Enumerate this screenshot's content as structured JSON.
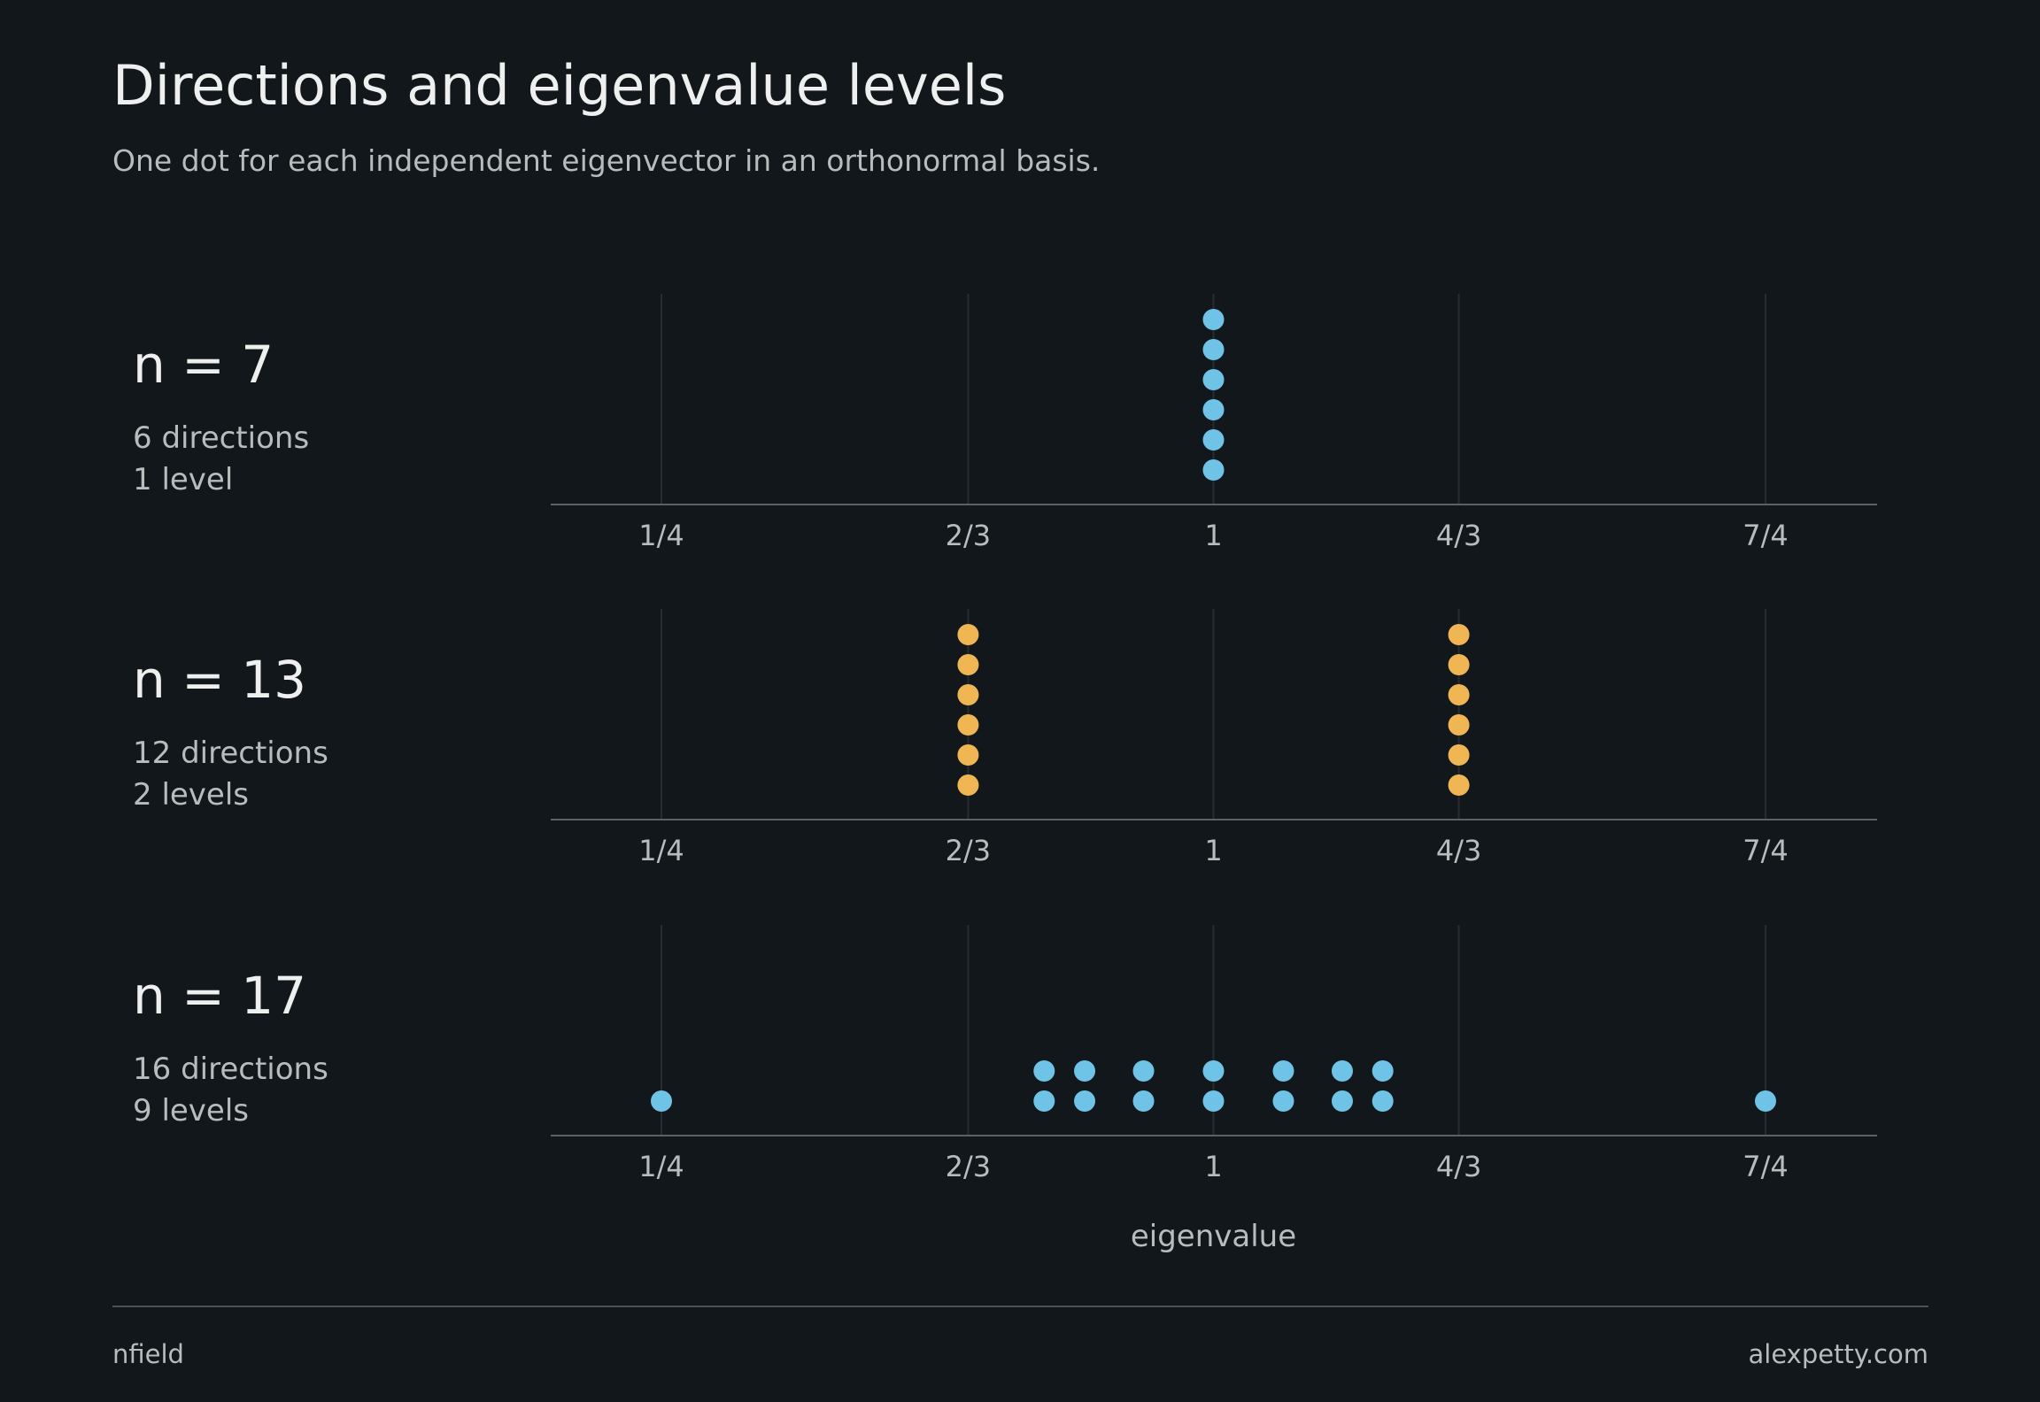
{
  "header": {
    "title": "Directions and eigenvalue levels",
    "subtitle": "One dot for each independent eigenvector in an orthonormal basis."
  },
  "footer": {
    "left": "nfield",
    "right": "alexpetty.com"
  },
  "colors": {
    "background": "#12171b",
    "blue": "#6ec3e7",
    "gold": "#efb653",
    "axis": "#5a6265",
    "grid": "#262d31",
    "label": "#b7bcbd",
    "heading": "#eef0ef"
  },
  "chart_data": {
    "type": "scatter",
    "xlabel": "eigenvalue",
    "x_ticks": [
      {
        "value": 0.25,
        "label": "1/4"
      },
      {
        "value": 0.6667,
        "label": "2/3"
      },
      {
        "value": 1,
        "label": "1"
      },
      {
        "value": 1.3333,
        "label": "4/3"
      },
      {
        "value": 1.75,
        "label": "7/4"
      }
    ],
    "xlim": [
      0.1,
      1.9
    ],
    "grid": true,
    "panels": [
      {
        "label": "n = 7",
        "directions_text": "6 directions",
        "levels_text": "1 level",
        "color": "blue",
        "points": [
          {
            "x": 1,
            "count": 6
          }
        ]
      },
      {
        "label": "n = 13",
        "directions_text": "12 directions",
        "levels_text": "2 levels",
        "color": "gold",
        "points": [
          {
            "x": 0.6667,
            "count": 6
          },
          {
            "x": 1.3333,
            "count": 6
          }
        ]
      },
      {
        "label": "n = 17",
        "directions_text": "16 directions",
        "levels_text": "9 levels",
        "color": "blue",
        "points": [
          {
            "x": 0.25,
            "count": 1
          },
          {
            "x": 0.77,
            "count": 2
          },
          {
            "x": 0.825,
            "count": 2
          },
          {
            "x": 0.905,
            "count": 2
          },
          {
            "x": 1,
            "count": 2
          },
          {
            "x": 1.095,
            "count": 2
          },
          {
            "x": 1.175,
            "count": 2
          },
          {
            "x": 1.23,
            "count": 2
          },
          {
            "x": 1.75,
            "count": 1
          }
        ]
      }
    ]
  }
}
